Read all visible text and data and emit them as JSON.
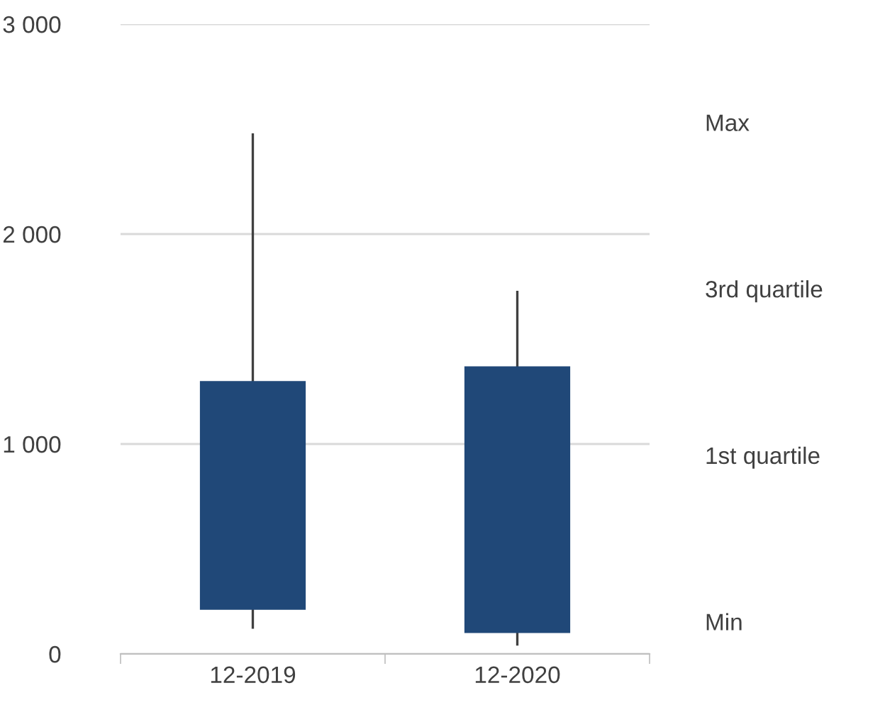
{
  "chart_data": {
    "type": "candlestick",
    "categories": [
      "12-2019",
      "12-2020"
    ],
    "ohlc": [
      [
        210,
        2480,
        120,
        1300
      ],
      [
        100,
        1730,
        40,
        1370
      ]
    ],
    "color": "#204878",
    "ylim": [
      0,
      3000
    ],
    "yticks": [
      {
        "value": 0,
        "label": "0"
      },
      {
        "value": 1000,
        "label": "1 000"
      },
      {
        "value": 2000,
        "label": "2 000"
      },
      {
        "value": 3000,
        "label": "3 000"
      }
    ],
    "grid": "y",
    "annotations": [
      "Max",
      "3rd quartile",
      "1st quartile",
      "Min"
    ]
  }
}
